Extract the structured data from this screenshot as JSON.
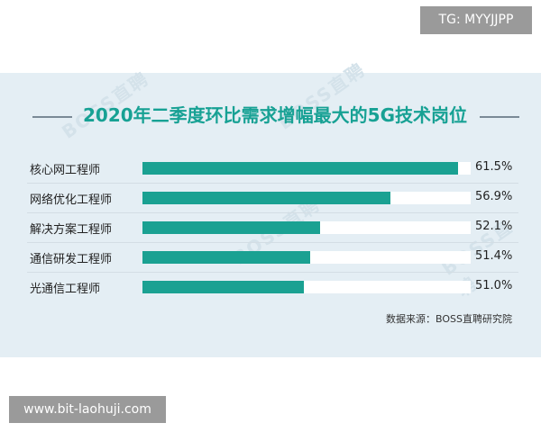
{
  "overlay": {
    "tg_badge": "TG: MYYJJPP",
    "site_badge": "www.bit-laohuji.com"
  },
  "watermark": "BOSS直聘",
  "chart_data": {
    "type": "bar",
    "orientation": "horizontal",
    "title": "2020年二季度环比需求增幅最大的5G技术岗位",
    "categories": [
      "核心网工程师",
      "网络优化工程师",
      "解决方案工程师",
      "通信研发工程师",
      "光通信工程师"
    ],
    "values": [
      61.5,
      56.9,
      52.1,
      51.4,
      51.0
    ],
    "value_labels": [
      "61.5%",
      "56.9%",
      "52.1%",
      "51.4%",
      "51.0%"
    ],
    "unit": "%",
    "bar_color": "#1aa192",
    "track_color": "#ffffff",
    "source": "数据来源：BOSS直聘研究院",
    "grid": false,
    "legend": "none"
  }
}
